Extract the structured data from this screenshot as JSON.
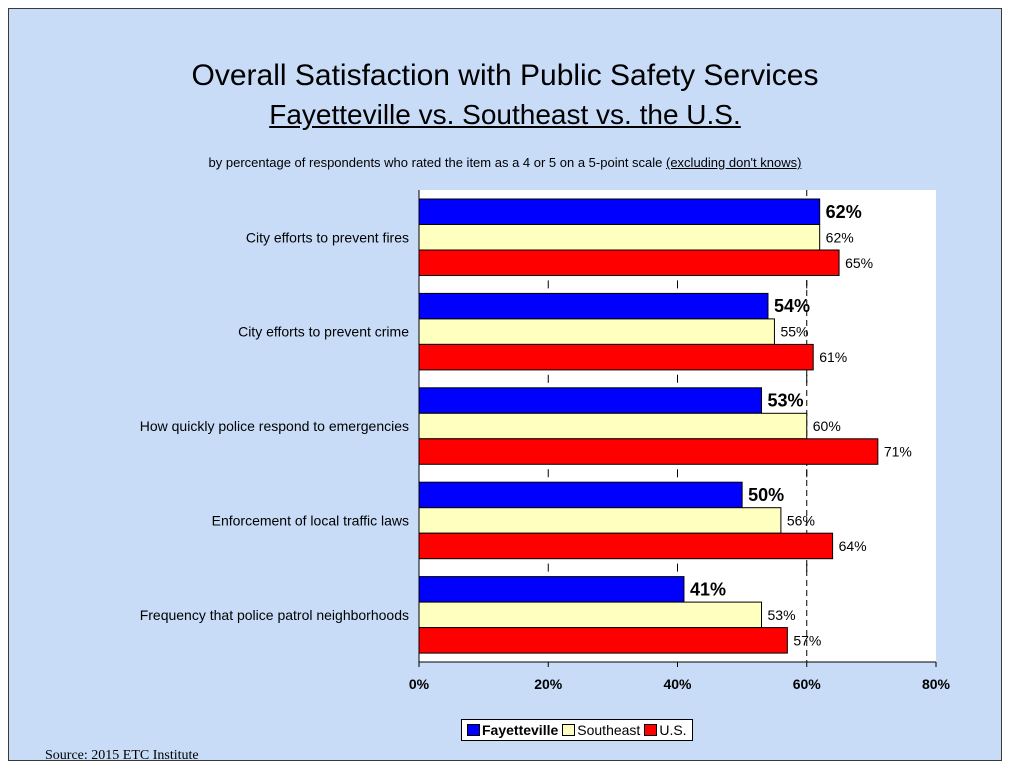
{
  "title": "Overall Satisfaction with Public Safety Services",
  "subtitle": "Fayetteville vs. Southeast vs. the U.S.",
  "note": {
    "prefix": "by percentage of respondents who rated the item as a 4 or 5 on a 5-point scale ",
    "underlined": "(excluding don't knows)"
  },
  "source": "Source:  2015 ETC Institute",
  "chart_data": {
    "type": "bar",
    "orientation": "horizontal",
    "categories": [
      "City efforts to prevent fires",
      "City efforts to prevent crime",
      "How quickly police respond to emergencies",
      "Enforcement of local traffic laws",
      "Frequency that police patrol neighborhoods"
    ],
    "series": [
      {
        "name": "Fayetteville",
        "color": "#0000ff",
        "values": [
          62,
          54,
          53,
          50,
          41
        ],
        "labels": [
          "62%",
          "54%",
          "53%",
          "50%",
          "41%"
        ],
        "bold": true
      },
      {
        "name": "Southeast",
        "color": "#ffffc0",
        "values": [
          62,
          55,
          60,
          56,
          53
        ],
        "labels": [
          "62%",
          "55%",
          "60%",
          "56%",
          "53%"
        ],
        "bold": false
      },
      {
        "name": "U.S.",
        "color": "#ff0000",
        "values": [
          65,
          61,
          71,
          64,
          57
        ],
        "labels": [
          "65%",
          "61%",
          "71%",
          "64%",
          "57%"
        ],
        "bold": false
      }
    ],
    "xlim": [
      0,
      80
    ],
    "ticks": [
      0,
      20,
      40,
      60,
      80
    ],
    "tick_labels": [
      "0%",
      "20%",
      "40%",
      "60%",
      "80%"
    ],
    "reference_line": 60,
    "legend_position": "bottom"
  }
}
